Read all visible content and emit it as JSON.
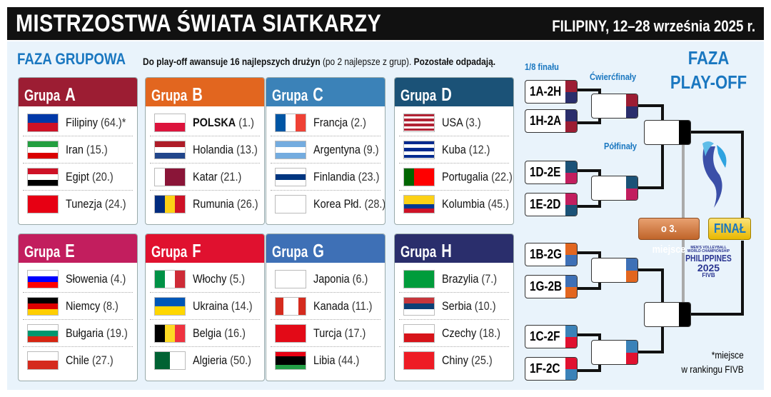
{
  "header": {
    "title": "MISTRZOSTWA ŚWIATA SIATKARZY",
    "dates": "FILIPINY, 12–28 września 2025 r."
  },
  "group_phase": {
    "title": "FAZA GRUPOWA",
    "note_bold1": "Do play-off awansuje 16 najlepszych drużyn",
    "note_mid": " (po 2 najlepsze z grup). ",
    "note_bold2": "Pozostałe odpadają."
  },
  "groups": [
    {
      "prefix": "Grupa ",
      "letter": "A",
      "color": "#9c1d33",
      "teams": [
        {
          "name": "Filipiny",
          "rank": "(64.)*",
          "flag": {
            "d": "h",
            "c": [
              "#0038a8",
              "#ce1126"
            ]
          }
        },
        {
          "name": "Iran",
          "rank": "(15.)",
          "flag": {
            "d": "h",
            "c": [
              "#239f40",
              "#ffffff",
              "#da0000"
            ]
          }
        },
        {
          "name": "Egipt",
          "rank": "(20.)",
          "flag": {
            "d": "h",
            "c": [
              "#ce1126",
              "#ffffff",
              "#000000"
            ]
          }
        },
        {
          "name": "Tunezja",
          "rank": "(24.)",
          "flag": {
            "d": "h",
            "c": [
              "#e70013"
            ]
          }
        }
      ]
    },
    {
      "prefix": "Grupa ",
      "letter": "B",
      "color": "#e2661f",
      "teams": [
        {
          "name": "POLSKA",
          "rank": "(1.)",
          "bold": true,
          "flag": {
            "d": "h",
            "c": [
              "#ffffff",
              "#dc143c"
            ]
          }
        },
        {
          "name": "Holandia",
          "rank": "(13.)",
          "flag": {
            "d": "h",
            "c": [
              "#ae1c28",
              "#ffffff",
              "#21468b"
            ]
          }
        },
        {
          "name": "Katar",
          "rank": "(21.)",
          "flag": {
            "d": "v",
            "c": [
              "#ffffff",
              "#8a1538",
              "#8a1538"
            ]
          }
        },
        {
          "name": "Rumunia",
          "rank": "(26.)",
          "flag": {
            "d": "v",
            "c": [
              "#002b7f",
              "#fcd116",
              "#ce1126"
            ]
          }
        }
      ]
    },
    {
      "prefix": "Grupa ",
      "letter": "C",
      "color": "#3b82b8",
      "teams": [
        {
          "name": "Francja",
          "rank": "(2.)",
          "flag": {
            "d": "v",
            "c": [
              "#0055a4",
              "#ffffff",
              "#ef4135"
            ]
          }
        },
        {
          "name": "Argentyna",
          "rank": "(9.)",
          "flag": {
            "d": "h",
            "c": [
              "#74acdf",
              "#ffffff",
              "#74acdf"
            ]
          }
        },
        {
          "name": "Finlandia",
          "rank": "(23.)",
          "flag": {
            "d": "h",
            "c": [
              "#ffffff",
              "#003580",
              "#ffffff"
            ]
          }
        },
        {
          "name": "Korea Płd.",
          "rank": "(28.)",
          "flag": {
            "d": "h",
            "c": [
              "#ffffff"
            ]
          }
        }
      ]
    },
    {
      "prefix": "Grupa ",
      "letter": "D",
      "color": "#1b5277",
      "teams": [
        {
          "name": "USA",
          "rank": "(3.)",
          "flag": {
            "d": "h",
            "c": [
              "#b22234",
              "#ffffff",
              "#b22234",
              "#ffffff",
              "#b22234",
              "#ffffff",
              "#b22234"
            ]
          }
        },
        {
          "name": "Kuba",
          "rank": "(12.)",
          "flag": {
            "d": "h",
            "c": [
              "#002a8f",
              "#ffffff",
              "#002a8f",
              "#ffffff",
              "#002a8f"
            ]
          }
        },
        {
          "name": "Portugalia",
          "rank": "(22.)",
          "flag": {
            "d": "v",
            "c": [
              "#006600",
              "#ff0000",
              "#ff0000"
            ]
          }
        },
        {
          "name": "Kolumbia",
          "rank": "(45.)",
          "flag": {
            "d": "h",
            "c": [
              "#fcd116",
              "#fcd116",
              "#003893",
              "#ce1126"
            ]
          }
        }
      ]
    },
    {
      "prefix": "Grupa ",
      "letter": "E",
      "color": "#c21e5e",
      "teams": [
        {
          "name": "Słowenia",
          "rank": "(4.)",
          "flag": {
            "d": "h",
            "c": [
              "#ffffff",
              "#0000ff",
              "#ff0000"
            ]
          }
        },
        {
          "name": "Niemcy",
          "rank": "(8.)",
          "flag": {
            "d": "h",
            "c": [
              "#000000",
              "#dd0000",
              "#ffce00"
            ]
          }
        },
        {
          "name": "Bułgaria",
          "rank": "(19.)",
          "flag": {
            "d": "h",
            "c": [
              "#ffffff",
              "#00966e",
              "#d62612"
            ]
          }
        },
        {
          "name": "Chile",
          "rank": "(27.)",
          "flag": {
            "d": "h",
            "c": [
              "#ffffff",
              "#d52b1e"
            ]
          }
        }
      ]
    },
    {
      "prefix": "Grupa ",
      "letter": "F",
      "color": "#e0112f",
      "teams": [
        {
          "name": "Włochy",
          "rank": "(5.)",
          "flag": {
            "d": "v",
            "c": [
              "#009246",
              "#ffffff",
              "#ce2b37"
            ]
          }
        },
        {
          "name": "Ukraina",
          "rank": "(14.)",
          "flag": {
            "d": "h",
            "c": [
              "#0057b7",
              "#ffd700"
            ]
          }
        },
        {
          "name": "Belgia",
          "rank": "(16.)",
          "flag": {
            "d": "v",
            "c": [
              "#000000",
              "#fdda24",
              "#ef3340"
            ]
          }
        },
        {
          "name": "Algieria",
          "rank": "(50.)",
          "flag": {
            "d": "v",
            "c": [
              "#006233",
              "#ffffff"
            ]
          }
        }
      ]
    },
    {
      "prefix": "Grupa ",
      "letter": "G",
      "color": "#3e70b6",
      "teams": [
        {
          "name": "Japonia",
          "rank": "(6.)",
          "flag": {
            "d": "h",
            "c": [
              "#ffffff"
            ]
          }
        },
        {
          "name": "Kanada",
          "rank": "(11.)",
          "flag": {
            "d": "v",
            "c": [
              "#d52b1e",
              "#ffffff",
              "#ffffff",
              "#d52b1e"
            ]
          }
        },
        {
          "name": "Turcja",
          "rank": "(17.)",
          "flag": {
            "d": "h",
            "c": [
              "#e30a17"
            ]
          }
        },
        {
          "name": "Libia",
          "rank": "(44.)",
          "flag": {
            "d": "h",
            "c": [
              "#e70013",
              "#000000",
              "#000000",
              "#239e46"
            ]
          }
        }
      ]
    },
    {
      "prefix": "Grupa ",
      "letter": "H",
      "color": "#2a2e6c",
      "teams": [
        {
          "name": "Brazylia",
          "rank": "(7.)",
          "flag": {
            "d": "h",
            "c": [
              "#009c3b"
            ]
          }
        },
        {
          "name": "Serbia",
          "rank": "(10.)",
          "flag": {
            "d": "h",
            "c": [
              "#c6363c",
              "#0c4076",
              "#ffffff"
            ]
          }
        },
        {
          "name": "Czechy",
          "rank": "(18.)",
          "flag": {
            "d": "h",
            "c": [
              "#ffffff",
              "#d7141a"
            ]
          }
        },
        {
          "name": "Chiny",
          "rank": "(25.)",
          "flag": {
            "d": "h",
            "c": [
              "#ee1c25"
            ]
          }
        }
      ]
    }
  ],
  "playoff": {
    "title_line1": "FAZA",
    "title_line2": "PLAY-OFF",
    "round_labels": {
      "r16": "1/8 finału",
      "qf": "Ćwierćfinały",
      "sf": "Półfinały"
    },
    "r16": [
      {
        "label": "1A-2H",
        "c": [
          "#9c1d33",
          "#2a2e6c"
        ]
      },
      {
        "label": "1H-2A",
        "c": [
          "#2a2e6c",
          "#9c1d33"
        ]
      },
      {
        "label": "1D-2E",
        "c": [
          "#1b5277",
          "#c21e5e"
        ]
      },
      {
        "label": "1E-2D",
        "c": [
          "#c21e5e",
          "#1b5277"
        ]
      },
      {
        "label": "1B-2G",
        "c": [
          "#e2661f",
          "#3e70b6"
        ]
      },
      {
        "label": "1G-2B",
        "c": [
          "#3e70b6",
          "#e2661f"
        ]
      },
      {
        "label": "1C-2F",
        "c": [
          "#3b82b8",
          "#e0112f"
        ]
      },
      {
        "label": "1F-2C",
        "c": [
          "#e0112f",
          "#3b82b8"
        ]
      }
    ],
    "qf": [
      {
        "c": [
          "#9c1d33",
          "#2a2e6c"
        ]
      },
      {
        "c": [
          "#1b5277",
          "#c21e5e"
        ]
      },
      {
        "c": [
          "#3e70b6",
          "#e2661f"
        ]
      },
      {
        "c": [
          "#3b82b8",
          "#e0112f"
        ]
      }
    ],
    "third_place": "o 3. miejsce",
    "final": "FINAŁ",
    "logo_text": [
      "MEN'S VOLLEYBALL",
      "WORLD CHAMPIONSHIP",
      "PHILIPPINES",
      "2025",
      "FIVB"
    ]
  },
  "footnote": {
    "line1": "*miejsce",
    "line2": "w rankingu FIVB"
  }
}
